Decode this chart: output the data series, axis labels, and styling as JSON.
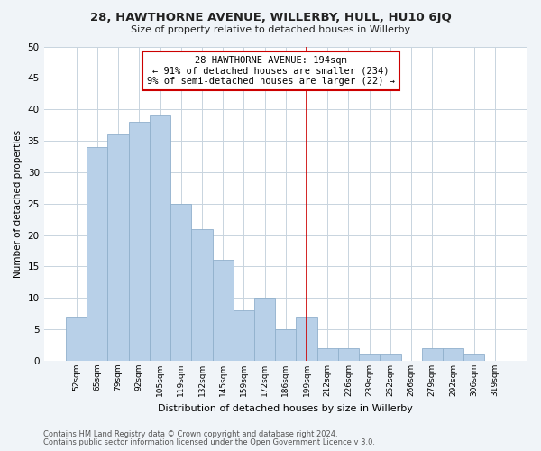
{
  "title1": "28, HAWTHORNE AVENUE, WILLERBY, HULL, HU10 6JQ",
  "title2": "Size of property relative to detached houses in Willerby",
  "xlabel": "Distribution of detached houses by size in Willerby",
  "ylabel": "Number of detached properties",
  "footer1": "Contains HM Land Registry data © Crown copyright and database right 2024.",
  "footer2": "Contains public sector information licensed under the Open Government Licence v 3.0.",
  "bar_labels": [
    "52sqm",
    "65sqm",
    "79sqm",
    "92sqm",
    "105sqm",
    "119sqm",
    "132sqm",
    "145sqm",
    "159sqm",
    "172sqm",
    "186sqm",
    "199sqm",
    "212sqm",
    "226sqm",
    "239sqm",
    "252sqm",
    "266sqm",
    "279sqm",
    "292sqm",
    "306sqm",
    "319sqm"
  ],
  "bar_values": [
    7,
    34,
    36,
    38,
    39,
    25,
    21,
    16,
    8,
    10,
    5,
    7,
    2,
    2,
    1,
    1,
    0,
    2,
    2,
    1,
    0
  ],
  "bar_color": "#b8d0e8",
  "bar_edge_color": "#90b0cc",
  "annotation_x_label": "199sqm",
  "annotation_line_color": "#cc0000",
  "annotation_box_text": [
    "28 HAWTHORNE AVENUE: 194sqm",
    "← 91% of detached houses are smaller (234)",
    "9% of semi-detached houses are larger (22) →"
  ],
  "annotation_box_edge_color": "#cc0000",
  "grid_color": "#c8d4de",
  "fig_bg_color": "#f0f4f8",
  "plot_bg_color": "#ffffff",
  "ylim": [
    0,
    50
  ],
  "yticks": [
    0,
    5,
    10,
    15,
    20,
    25,
    30,
    35,
    40,
    45,
    50
  ]
}
